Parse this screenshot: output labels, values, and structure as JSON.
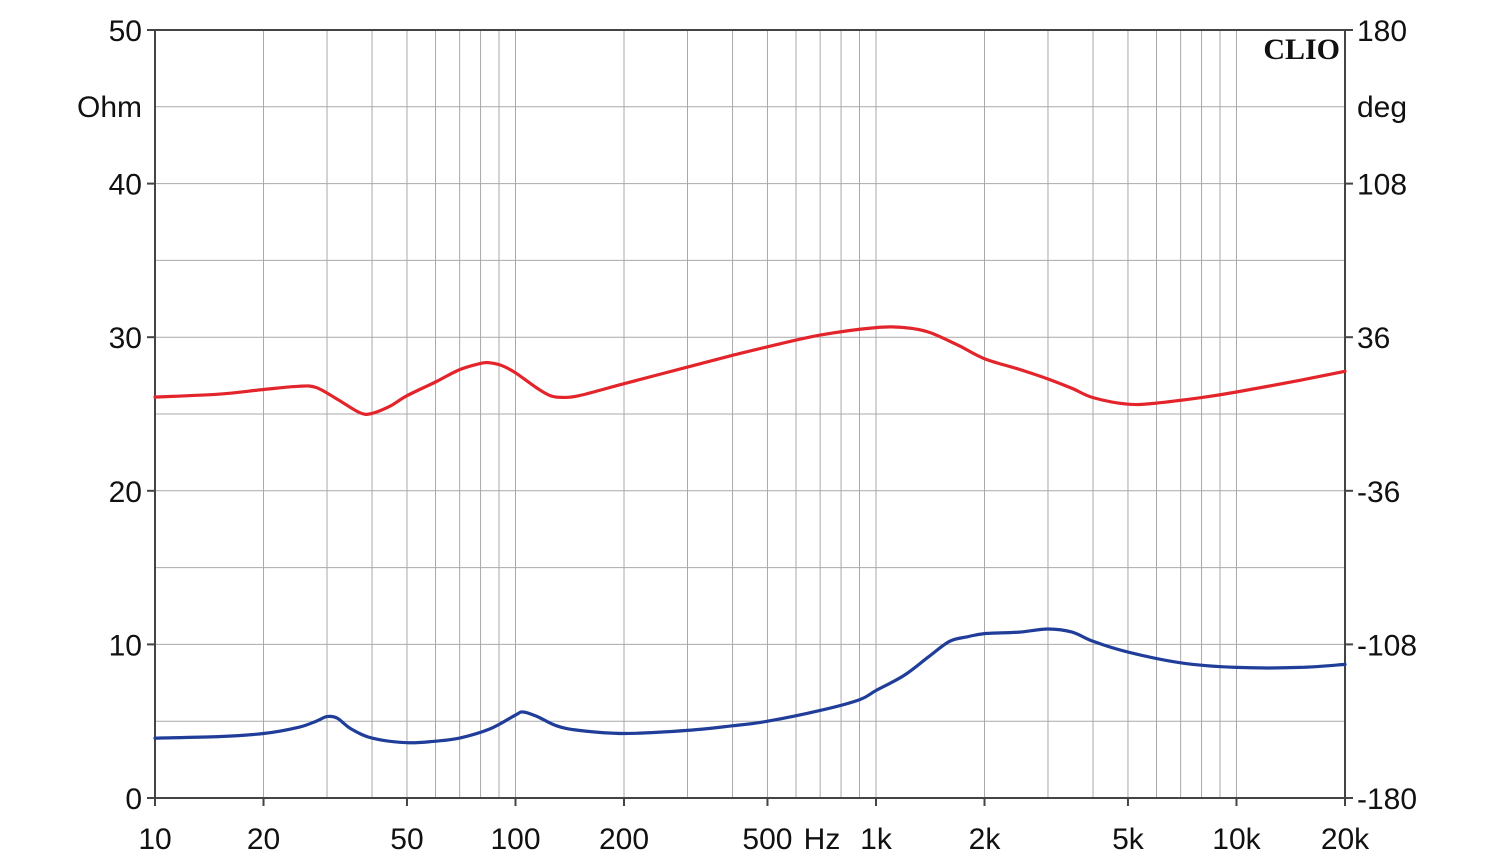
{
  "chart_data": {
    "type": "line",
    "watermark": "CLIO",
    "x_axis": {
      "scale": "log",
      "range": [
        10,
        20000
      ],
      "unit_label": "Hz",
      "ticks": [
        {
          "value": 10,
          "label": "10"
        },
        {
          "value": 20,
          "label": "20"
        },
        {
          "value": 50,
          "label": "50"
        },
        {
          "value": 100,
          "label": "100"
        },
        {
          "value": 200,
          "label": "200"
        },
        {
          "value": 500,
          "label": "500"
        },
        {
          "value": 1000,
          "label": "1k"
        },
        {
          "value": 2000,
          "label": "2k"
        },
        {
          "value": 5000,
          "label": "5k"
        },
        {
          "value": 10000,
          "label": "10k"
        },
        {
          "value": 20000,
          "label": "20k"
        }
      ]
    },
    "y_axis_left": {
      "unit_label": "Ohm",
      "range": [
        0,
        50
      ],
      "ticks": [
        {
          "value": 0,
          "label": "0"
        },
        {
          "value": 10,
          "label": "10"
        },
        {
          "value": 20,
          "label": "20"
        },
        {
          "value": 30,
          "label": "30"
        },
        {
          "value": 40,
          "label": "40"
        },
        {
          "value": 50,
          "label": "50"
        }
      ]
    },
    "y_axis_right": {
      "unit_label": "deg",
      "range": [
        -180,
        180
      ],
      "ticks": [
        {
          "value": -180,
          "label": "-180"
        },
        {
          "value": -108,
          "label": "-108"
        },
        {
          "value": -36,
          "label": "-36"
        },
        {
          "value": 36,
          "label": "36"
        },
        {
          "value": 108,
          "label": "108"
        },
        {
          "value": 180,
          "label": "180"
        }
      ]
    },
    "grid": true,
    "series": [
      {
        "axis": "right",
        "color": "#e3242b",
        "points": [
          [
            10,
            7.9
          ],
          [
            15,
            9.3
          ],
          [
            20,
            11.5
          ],
          [
            25,
            13.0
          ],
          [
            28,
            12.4
          ],
          [
            32,
            7.0
          ],
          [
            37,
            0.6
          ],
          [
            40,
            0.3
          ],
          [
            45,
            3.8
          ],
          [
            50,
            8.6
          ],
          [
            60,
            15.0
          ],
          [
            70,
            20.8
          ],
          [
            80,
            23.7
          ],
          [
            85,
            24.0
          ],
          [
            92,
            22.6
          ],
          [
            100,
            19.3
          ],
          [
            115,
            12.0
          ],
          [
            125,
            8.6
          ],
          [
            135,
            7.8
          ],
          [
            150,
            8.6
          ],
          [
            200,
            14.2
          ],
          [
            300,
            22.0
          ],
          [
            400,
            27.5
          ],
          [
            500,
            31.5
          ],
          [
            700,
            37.0
          ],
          [
            1000,
            40.5
          ],
          [
            1200,
            40.5
          ],
          [
            1400,
            38.4
          ],
          [
            1700,
            32.0
          ],
          [
            2000,
            25.9
          ],
          [
            2500,
            20.9
          ],
          [
            3000,
            16.4
          ],
          [
            3500,
            12.0
          ],
          [
            4000,
            7.7
          ],
          [
            5000,
            4.6
          ],
          [
            6000,
            5.1
          ],
          [
            8000,
            7.7
          ],
          [
            10000,
            10.3
          ],
          [
            15000,
            15.8
          ],
          [
            20000,
            20.0
          ]
        ]
      },
      {
        "axis": "left",
        "color": "#1f3d99",
        "points": [
          [
            10,
            3.9
          ],
          [
            15,
            4.0
          ],
          [
            20,
            4.2
          ],
          [
            25,
            4.6
          ],
          [
            28,
            5.0
          ],
          [
            30,
            5.3
          ],
          [
            32,
            5.2
          ],
          [
            35,
            4.5
          ],
          [
            40,
            3.9
          ],
          [
            50,
            3.6
          ],
          [
            60,
            3.7
          ],
          [
            70,
            3.9
          ],
          [
            85,
            4.5
          ],
          [
            100,
            5.4
          ],
          [
            105,
            5.6
          ],
          [
            115,
            5.3
          ],
          [
            130,
            4.7
          ],
          [
            150,
            4.4
          ],
          [
            200,
            4.2
          ],
          [
            300,
            4.4
          ],
          [
            400,
            4.7
          ],
          [
            500,
            5.0
          ],
          [
            700,
            5.7
          ],
          [
            900,
            6.4
          ],
          [
            1000,
            7.0
          ],
          [
            1200,
            8.0
          ],
          [
            1400,
            9.2
          ],
          [
            1600,
            10.2
          ],
          [
            1800,
            10.5
          ],
          [
            2000,
            10.7
          ],
          [
            2500,
            10.8
          ],
          [
            3000,
            11.0
          ],
          [
            3500,
            10.8
          ],
          [
            4000,
            10.2
          ],
          [
            5000,
            9.5
          ],
          [
            7000,
            8.8
          ],
          [
            10000,
            8.5
          ],
          [
            15000,
            8.5
          ],
          [
            20000,
            8.7
          ]
        ]
      }
    ]
  }
}
